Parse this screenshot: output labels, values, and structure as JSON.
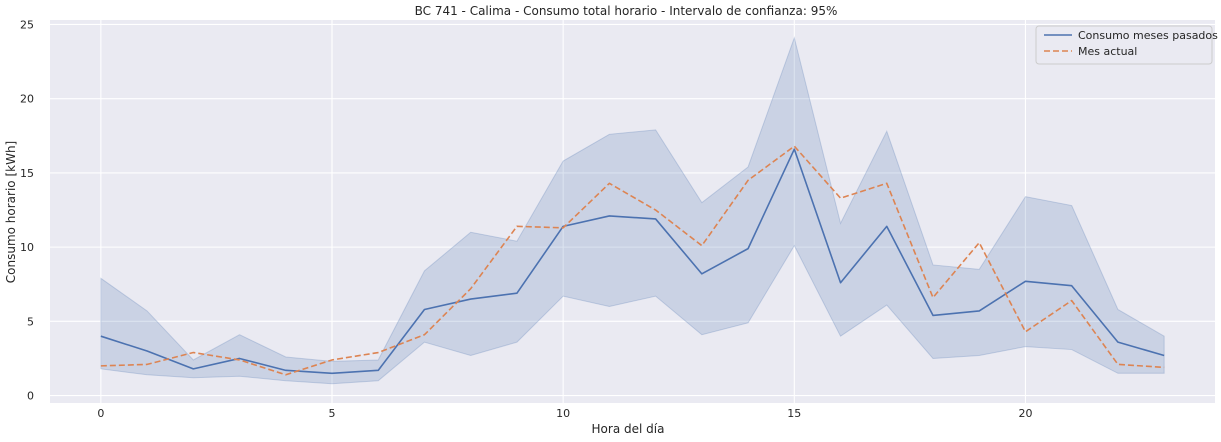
{
  "chart_data": {
    "type": "line",
    "title": "BC 741 - Calima - Consumo total horario - Intervalo de confianza: 95%",
    "xlabel": "Hora del día",
    "ylabel": "Consumo horario [kWh]",
    "xlim": [
      -1.1,
      24.1
    ],
    "ylim": [
      -0.5,
      25.3
    ],
    "xticks": [
      0,
      5,
      10,
      15,
      20
    ],
    "yticks": [
      0,
      5,
      10,
      15,
      20,
      25
    ],
    "grid": true,
    "legend_position": "top-right",
    "x": [
      0,
      1,
      2,
      3,
      4,
      5,
      6,
      7,
      8,
      9,
      10,
      11,
      12,
      13,
      14,
      15,
      16,
      17,
      18,
      19,
      20,
      21,
      22,
      23
    ],
    "series": [
      {
        "name": "Consumo meses pasados",
        "color": "#4c72b0",
        "style": "solid",
        "values": [
          4.0,
          3.0,
          1.8,
          2.5,
          1.7,
          1.5,
          1.7,
          5.8,
          6.5,
          6.9,
          11.4,
          12.1,
          11.9,
          8.2,
          9.9,
          16.6,
          7.6,
          11.4,
          5.4,
          5.7,
          7.7,
          7.4,
          3.6,
          2.7
        ],
        "ci_lower": [
          1.8,
          1.4,
          1.2,
          1.3,
          1.0,
          0.8,
          1.0,
          3.6,
          2.7,
          3.6,
          6.7,
          6.0,
          6.7,
          4.1,
          4.9,
          10.1,
          4.0,
          6.1,
          2.5,
          2.7,
          3.3,
          3.1,
          1.5,
          1.5
        ],
        "ci_upper": [
          7.9,
          5.7,
          2.4,
          4.1,
          2.6,
          2.3,
          2.4,
          8.4,
          11.0,
          10.4,
          15.8,
          17.6,
          17.9,
          13.0,
          15.4,
          24.1,
          11.6,
          17.8,
          8.8,
          8.5,
          13.4,
          12.8,
          5.8,
          4.0
        ]
      },
      {
        "name": "Mes actual",
        "color": "#dd8452",
        "style": "dashed",
        "values": [
          2.0,
          2.1,
          2.9,
          2.4,
          1.4,
          2.4,
          2.9,
          4.1,
          7.2,
          11.4,
          11.3,
          14.3,
          12.5,
          10.1,
          14.5,
          16.8,
          13.3,
          14.3,
          6.6,
          10.3,
          4.3,
          6.4,
          2.1,
          1.9
        ]
      }
    ]
  }
}
